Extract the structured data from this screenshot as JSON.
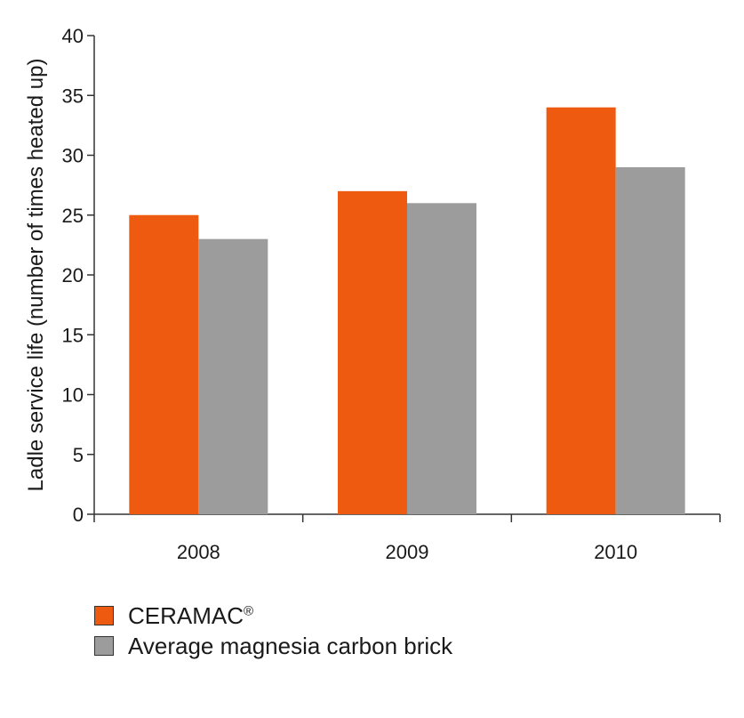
{
  "chart_data": {
    "type": "bar",
    "categories": [
      "2008",
      "2009",
      "2010"
    ],
    "series": [
      {
        "name": "CERAMAC®",
        "values": [
          25,
          27,
          34
        ],
        "color": "#ee5a0f"
      },
      {
        "name": "Average magnesia carbon brick",
        "values": [
          23,
          26,
          29
        ],
        "color": "#9c9c9c"
      }
    ],
    "ylabel": "Ladle service life  (number of times heated up)",
    "xlabel": "",
    "ylim": [
      0,
      40
    ],
    "yticks": [
      0,
      5,
      10,
      15,
      20,
      25,
      30,
      35,
      40
    ],
    "grid": false,
    "legend_position": "bottom-left"
  },
  "legend": {
    "ceramac_label": "CERAMAC",
    "ceramac_mark": "®",
    "magnesia_label": "Average magnesia carbon brick"
  }
}
